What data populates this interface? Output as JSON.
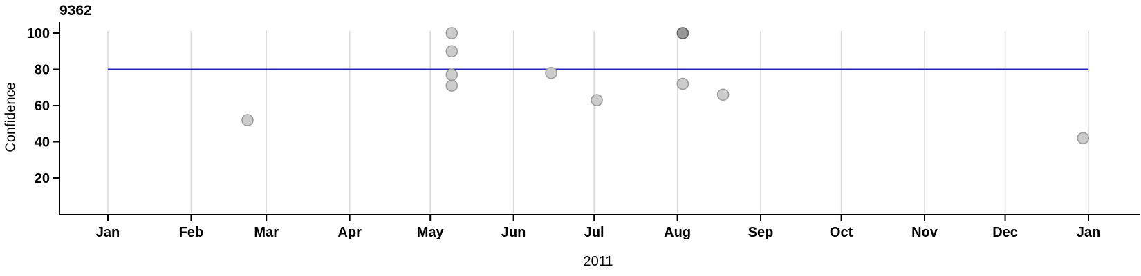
{
  "chart_data": {
    "type": "scatter",
    "title": "9362",
    "xlabel": "2011",
    "ylabel": "Confidence",
    "x_axis": {
      "tick_labels": [
        "Jan",
        "Feb",
        "Mar",
        "Apr",
        "May",
        "Jun",
        "Jul",
        "Aug",
        "Sep",
        "Oct",
        "Nov",
        "Dec",
        "Jan"
      ],
      "tick_days": [
        0,
        31,
        59,
        90,
        120,
        151,
        181,
        212,
        243,
        273,
        304,
        334,
        365
      ],
      "domain_days": [
        0,
        365
      ],
      "grid": true
    },
    "y_axis": {
      "tick_values": [
        20,
        40,
        60,
        80,
        100
      ],
      "range": [
        0,
        105
      ],
      "grid": false
    },
    "reference_line": {
      "y": 80,
      "color": "#2222c0"
    },
    "points": [
      {
        "date": "2011-02-22",
        "day": 52,
        "value": 52,
        "emphasis": false
      },
      {
        "date": "2011-05-09",
        "day": 128,
        "value": 100,
        "emphasis": false
      },
      {
        "date": "2011-05-09",
        "day": 128,
        "value": 90,
        "emphasis": false
      },
      {
        "date": "2011-05-09",
        "day": 128,
        "value": 77,
        "emphasis": false
      },
      {
        "date": "2011-05-09",
        "day": 128,
        "value": 71,
        "emphasis": false
      },
      {
        "date": "2011-06-15",
        "day": 165,
        "value": 78,
        "emphasis": false
      },
      {
        "date": "2011-07-02",
        "day": 182,
        "value": 63,
        "emphasis": false
      },
      {
        "date": "2011-08-03",
        "day": 214,
        "value": 100,
        "emphasis": true
      },
      {
        "date": "2011-08-03",
        "day": 214,
        "value": 72,
        "emphasis": false
      },
      {
        "date": "2011-08-18",
        "day": 229,
        "value": 66,
        "emphasis": false
      },
      {
        "date": "2011-12-30",
        "day": 363,
        "value": 42,
        "emphasis": false
      }
    ],
    "style": {
      "point_fill": "#cccccc",
      "point_stroke": "#9b9b9b",
      "point_fill_emphasis": "#999999",
      "point_stroke_emphasis": "#5f5f5f",
      "grid_color": "#dadada",
      "axis_color": "#000000",
      "text_color": "#000000"
    }
  }
}
